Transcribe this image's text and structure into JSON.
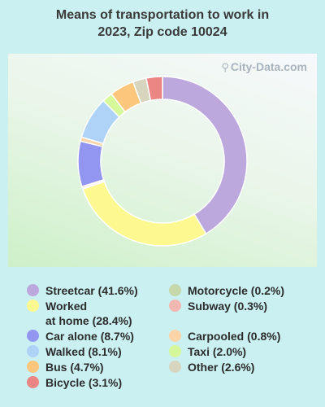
{
  "title_line1": "Means of transportation to work in",
  "title_line2": "2023, Zip code 10024",
  "watermark": "City-Data.com",
  "chart_data": {
    "type": "pie",
    "style": "donut",
    "title": "Means of transportation to work in 2023, Zip code 10024",
    "slices": [
      {
        "label": "Streetcar",
        "value": 41.6,
        "color": "#bca8dc"
      },
      {
        "label": "Worked at home",
        "value": 28.4,
        "color": "#fdf890"
      },
      {
        "label": "Motorcycle",
        "value": 0.2,
        "color": "#c6d7a9"
      },
      {
        "label": "Subway",
        "value": 0.3,
        "color": "#f3b7b1"
      },
      {
        "label": "Car alone",
        "value": 8.7,
        "color": "#9396f0"
      },
      {
        "label": "Carpooled",
        "value": 0.8,
        "color": "#fbd5a8"
      },
      {
        "label": "Walked",
        "value": 8.1,
        "color": "#aed3f6"
      },
      {
        "label": "Taxi",
        "value": 2.0,
        "color": "#d6f79a"
      },
      {
        "label": "Bus",
        "value": 4.7,
        "color": "#fcc77d"
      },
      {
        "label": "Other",
        "value": 2.6,
        "color": "#d8d5be"
      },
      {
        "label": "Bicycle",
        "value": 3.1,
        "color": "#ec8684"
      }
    ]
  },
  "legend": {
    "left": [
      {
        "text": "Streetcar (41.6%)",
        "color": "#bca8dc"
      },
      {
        "text": "Worked",
        "text2": "at home (28.4%)",
        "color": "#fdf890"
      },
      {
        "text": "Car alone (8.7%)",
        "color": "#9396f0"
      },
      {
        "text": "Walked (8.1%)",
        "color": "#aed3f6"
      },
      {
        "text": "Bus (4.7%)",
        "color": "#fcc77d"
      },
      {
        "text": "Bicycle (3.1%)",
        "color": "#ec8684"
      }
    ],
    "right": [
      {
        "text": "Motorcycle (0.2%)",
        "color": "#c6d7a9"
      },
      {
        "text": "Subway (0.3%)",
        "color": "#f3b7b1"
      },
      {
        "text": "Carpooled (0.8%)",
        "color": "#fbd5a8"
      },
      {
        "text": "Taxi (2.0%)",
        "color": "#d6f79a"
      },
      {
        "text": "Other (2.6%)",
        "color": "#d8d5be"
      }
    ]
  }
}
